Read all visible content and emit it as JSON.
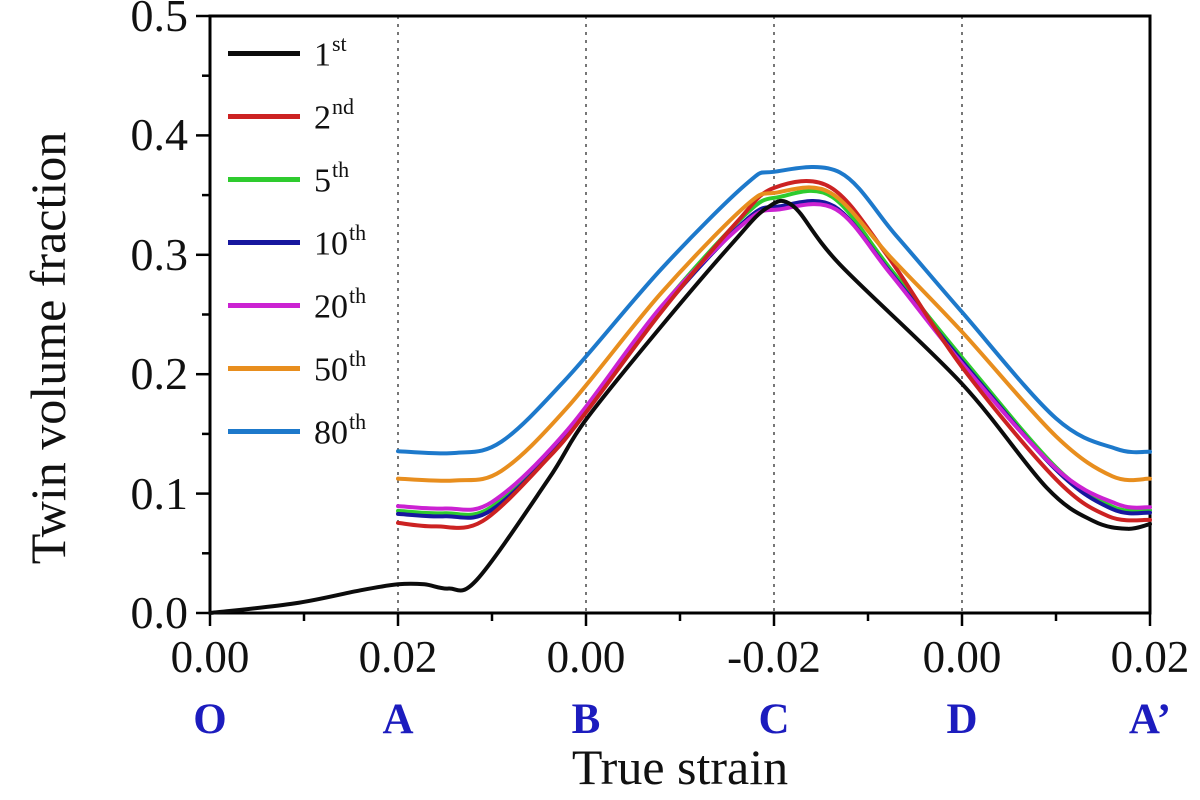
{
  "figure_type": "scientific line chart",
  "chart_data": {
    "type": "line",
    "title": "",
    "xlabel": "True strain",
    "ylabel": "Twin volume fraction",
    "ylim": [
      0.0,
      0.5
    ],
    "y_tick_labels": [
      "0.0",
      "0.1",
      "0.2",
      "0.3",
      "0.4",
      "0.5"
    ],
    "y_minor_ticks": [
      0.05,
      0.15,
      0.25,
      0.35,
      0.45
    ],
    "grid": "dashed vertical gridlines at landmarks A, B, C, D",
    "legend_position": "upper-left inside plot",
    "x_path_landmarks": [
      {
        "letter": "O",
        "strain": "0.00"
      },
      {
        "letter": "A",
        "strain": "0.02"
      },
      {
        "letter": "B",
        "strain": "0.00"
      },
      {
        "letter": "C",
        "strain": "-0.02"
      },
      {
        "letter": "D",
        "strain": "0.00"
      },
      {
        "letter": "A’",
        "strain": "0.02"
      }
    ],
    "x_axis_note": "cyclic strain path O→A→B→C→D→A’; points below are [path-position 0..5, twin volume fraction]",
    "series": [
      {
        "name": "5th",
        "base": "5",
        "sup": "th",
        "color": "#2ecb2e",
        "points": [
          [
            1,
            0.0855
          ],
          [
            1.25,
            0.0835
          ],
          [
            1.5,
            0.089
          ],
          [
            1.9,
            0.152
          ],
          [
            2.4,
            0.256
          ],
          [
            2.85,
            0.334
          ],
          [
            3.03,
            0.3485
          ],
          [
            3.31,
            0.3485
          ],
          [
            3.62,
            0.288
          ],
          [
            4.0,
            0.214
          ],
          [
            4.5,
            0.122
          ],
          [
            4.8,
            0.089
          ],
          [
            5,
            0.086
          ]
        ]
      },
      {
        "name": "10th",
        "base": "10",
        "sup": "th",
        "color": "#17179e",
        "points": [
          [
            1,
            0.083
          ],
          [
            1.25,
            0.081
          ],
          [
            1.5,
            0.0865
          ],
          [
            1.9,
            0.149
          ],
          [
            2.4,
            0.253
          ],
          [
            2.85,
            0.329
          ],
          [
            3.03,
            0.3405
          ],
          [
            3.32,
            0.3405
          ],
          [
            3.62,
            0.285
          ],
          [
            4.0,
            0.211
          ],
          [
            4.5,
            0.12
          ],
          [
            4.8,
            0.087
          ],
          [
            5,
            0.084
          ]
        ]
      },
      {
        "name": "20th",
        "base": "20",
        "sup": "th",
        "color": "#cb22d2",
        "points": [
          [
            1,
            0.0895
          ],
          [
            1.25,
            0.0875
          ],
          [
            1.5,
            0.093
          ],
          [
            1.9,
            0.153
          ],
          [
            2.4,
            0.2565
          ],
          [
            2.85,
            0.3275
          ],
          [
            3.03,
            0.338
          ],
          [
            3.33,
            0.338
          ],
          [
            3.62,
            0.284
          ],
          [
            4.0,
            0.209
          ],
          [
            4.5,
            0.121
          ],
          [
            4.82,
            0.0915
          ],
          [
            5,
            0.0885
          ]
        ]
      },
      {
        "name": "2nd",
        "base": "2",
        "sup": "nd",
        "color": "#cc2222",
        "points": [
          [
            1,
            0.0755
          ],
          [
            1.2,
            0.0725
          ],
          [
            1.45,
            0.077
          ],
          [
            1.8,
            0.13
          ],
          [
            2.0,
            0.168
          ],
          [
            2.4,
            0.252
          ],
          [
            2.8,
            0.327
          ],
          [
            3.0,
            0.356
          ],
          [
            3.3,
            0.3565
          ],
          [
            3.6,
            0.3
          ],
          [
            4.0,
            0.206
          ],
          [
            4.5,
            0.112
          ],
          [
            4.78,
            0.081
          ],
          [
            5,
            0.078
          ]
        ]
      },
      {
        "name": "50th",
        "base": "50",
        "sup": "th",
        "color": "#e88e1e",
        "points": [
          [
            1,
            0.1125
          ],
          [
            1.3,
            0.111
          ],
          [
            1.55,
            0.119
          ],
          [
            1.9,
            0.172
          ],
          [
            2.4,
            0.268
          ],
          [
            2.85,
            0.341
          ],
          [
            3.01,
            0.352
          ],
          [
            3.3,
            0.352
          ],
          [
            3.62,
            0.298
          ],
          [
            4.0,
            0.2355
          ],
          [
            4.5,
            0.148
          ],
          [
            4.8,
            0.1145
          ],
          [
            5,
            0.1125
          ]
        ]
      },
      {
        "name": "80th",
        "base": "80",
        "sup": "th",
        "color": "#1d79cb",
        "points": [
          [
            1,
            0.1355
          ],
          [
            1.3,
            0.134
          ],
          [
            1.55,
            0.1435
          ],
          [
            1.9,
            0.197
          ],
          [
            2.4,
            0.288
          ],
          [
            2.85,
            0.359
          ],
          [
            3.0,
            0.3695
          ],
          [
            3.35,
            0.369
          ],
          [
            3.65,
            0.316
          ],
          [
            4.0,
            0.252
          ],
          [
            4.5,
            0.163
          ],
          [
            4.82,
            0.1375
          ],
          [
            5,
            0.135
          ]
        ]
      },
      {
        "name": "1st",
        "base": "1",
        "sup": "st",
        "color": "#0c0c0c",
        "points": [
          [
            0,
            0.0
          ],
          [
            0.45,
            0.008
          ],
          [
            0.8,
            0.019
          ],
          [
            1.0,
            0.024
          ],
          [
            1.14,
            0.024
          ],
          [
            1.27,
            0.0205
          ],
          [
            1.42,
            0.028
          ],
          [
            1.8,
            0.112
          ],
          [
            2.0,
            0.162
          ],
          [
            2.4,
            0.24
          ],
          [
            2.78,
            0.31
          ],
          [
            2.96,
            0.339
          ],
          [
            3.1,
            0.341
          ],
          [
            3.35,
            0.292
          ],
          [
            4.0,
            0.192
          ],
          [
            4.45,
            0.105
          ],
          [
            4.7,
            0.077
          ],
          [
            4.88,
            0.0705
          ],
          [
            5,
            0.0745
          ]
        ]
      }
    ],
    "legend_order": [
      "1st",
      "2nd",
      "5th",
      "10th",
      "20th",
      "50th",
      "80th"
    ],
    "colors": {
      "axis": "#000000",
      "gridline": "#777777",
      "landmark_letters": "#1c1cbe"
    }
  }
}
